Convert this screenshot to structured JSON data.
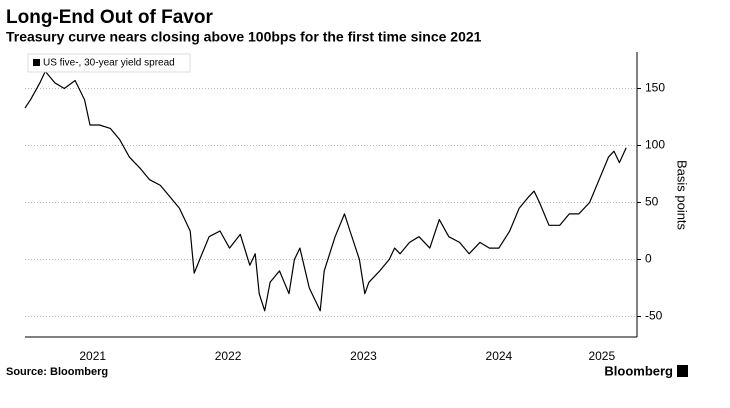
{
  "chart_data": {
    "type": "line",
    "title": "Long-End Out of Favor",
    "subtitle": "Treasury curve nears closing above 100bps for the first time since 2021",
    "y_label": "Basis points",
    "source": "Source: Bloomberg",
    "brand": "Bloomberg",
    "x": [
      2021.0,
      2021.04,
      2021.11,
      2021.15,
      2021.22,
      2021.29,
      2021.37,
      2021.44,
      2021.48,
      2021.55,
      2021.63,
      2021.7,
      2021.77,
      2021.85,
      2021.92,
      2022.0,
      2022.07,
      2022.14,
      2022.22,
      2022.25,
      2022.29,
      2022.36,
      2022.44,
      2022.51,
      2022.59,
      2022.66,
      2022.7,
      2022.73,
      2022.77,
      2022.81,
      2022.88,
      2022.95,
      2022.99,
      2023.03,
      2023.1,
      2023.18,
      2023.21,
      2023.29,
      2023.36,
      2023.4,
      2023.47,
      2023.51,
      2023.54,
      2023.62,
      2023.69,
      2023.73,
      2023.77,
      2023.84,
      2023.91,
      2023.99,
      2024.06,
      2024.13,
      2024.21,
      2024.28,
      2024.36,
      2024.43,
      2024.5,
      2024.58,
      2024.65,
      2024.72,
      2024.76,
      2024.8,
      2024.87,
      2024.95,
      2025.02,
      2025.09,
      2025.17,
      2025.24,
      2025.31,
      2025.35,
      2025.39,
      2025.44
    ],
    "series": [
      {
        "name": "US five-, 30-year yield spread",
        "color": "#000000",
        "values": [
          133,
          140,
          155,
          165,
          155,
          150,
          157,
          140,
          118,
          118,
          115,
          105,
          90,
          80,
          70,
          65,
          55,
          45,
          25,
          -12,
          0,
          20,
          25,
          10,
          22,
          -5,
          5,
          -30,
          -45,
          -20,
          -10,
          -30,
          0,
          10,
          -25,
          -45,
          -10,
          20,
          40,
          25,
          0,
          -30,
          -20,
          -10,
          0,
          10,
          5,
          15,
          20,
          10,
          35,
          20,
          15,
          5,
          15,
          10,
          10,
          25,
          45,
          55,
          60,
          50,
          30,
          30,
          40,
          40,
          50,
          70,
          90,
          95,
          85,
          98
        ]
      }
    ],
    "xlim": [
      2021,
      2025.52
    ],
    "xticks": [
      {
        "value": 2021.5,
        "label": "2021"
      },
      {
        "value": 2022.5,
        "label": "2022"
      },
      {
        "value": 2023.5,
        "label": "2023"
      },
      {
        "value": 2024.5,
        "label": "2024"
      },
      {
        "value": 2025.26,
        "label": "2025"
      }
    ],
    "ylim": [
      -68,
      182
    ],
    "yticks": [
      -50,
      0,
      50,
      100,
      150
    ],
    "grid": true
  }
}
